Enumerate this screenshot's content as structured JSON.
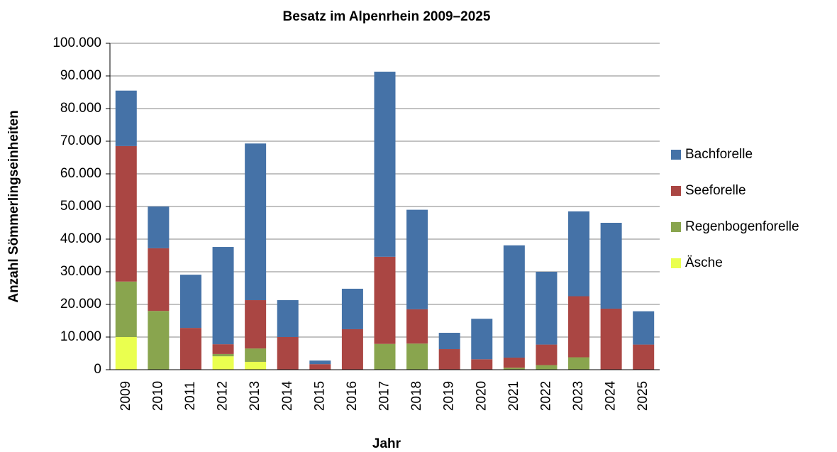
{
  "chart_data": {
    "type": "stacked_bar",
    "title": "Besatz im Alpenrhein 2009–2025",
    "x_label": "Jahr",
    "y_label": "Anzahl Sömmerlingseinheiten",
    "categories": [
      "2009",
      "2010",
      "2011",
      "2012",
      "2013",
      "2014",
      "2015",
      "2016",
      "2017",
      "2018",
      "2019",
      "2020",
      "2021",
      "2022",
      "2023",
      "2024",
      "2025"
    ],
    "series": [
      {
        "name": "Äsche",
        "color": "#eaff4f",
        "values": [
          10000,
          0,
          0,
          4100,
          2400,
          0,
          0,
          0,
          0,
          0,
          0,
          0,
          0,
          0,
          0,
          0,
          0
        ]
      },
      {
        "name": "Regenbogenforelle",
        "color": "#89a54e",
        "values": [
          17000,
          18000,
          0,
          700,
          4100,
          0,
          0,
          0,
          7900,
          8000,
          0,
          0,
          600,
          1400,
          3800,
          0,
          0
        ]
      },
      {
        "name": "Seeforelle",
        "color": "#aa4643",
        "values": [
          41500,
          19200,
          12800,
          3000,
          14800,
          10000,
          1700,
          12400,
          26700,
          10500,
          6300,
          3200,
          3100,
          6300,
          18700,
          18700,
          7700
        ]
      },
      {
        "name": "Bachforelle",
        "color": "#4572a7",
        "values": [
          17000,
          12800,
          16300,
          29800,
          48000,
          11300,
          1100,
          12400,
          56700,
          30500,
          5000,
          12400,
          34400,
          22300,
          26000,
          26300,
          10200
        ]
      }
    ],
    "ylim": [
      0,
      100000
    ],
    "yticks": [
      0,
      {
        "value": 10000,
        "label": "10.000"
      },
      {
        "value": 20000,
        "label": "20.000"
      },
      {
        "value": 30000,
        "label": "30.000"
      },
      {
        "value": 40000,
        "label": "40.000"
      },
      {
        "value": 50000,
        "label": "50.000"
      },
      {
        "value": 60000,
        "label": "60.000"
      },
      {
        "value": 70000,
        "label": "70.000"
      },
      {
        "value": 80000,
        "label": "80.000"
      },
      {
        "value": 90000,
        "label": "90.000"
      },
      {
        "value": 100000,
        "label": "100.000"
      }
    ],
    "grid": true,
    "legend": "right"
  }
}
